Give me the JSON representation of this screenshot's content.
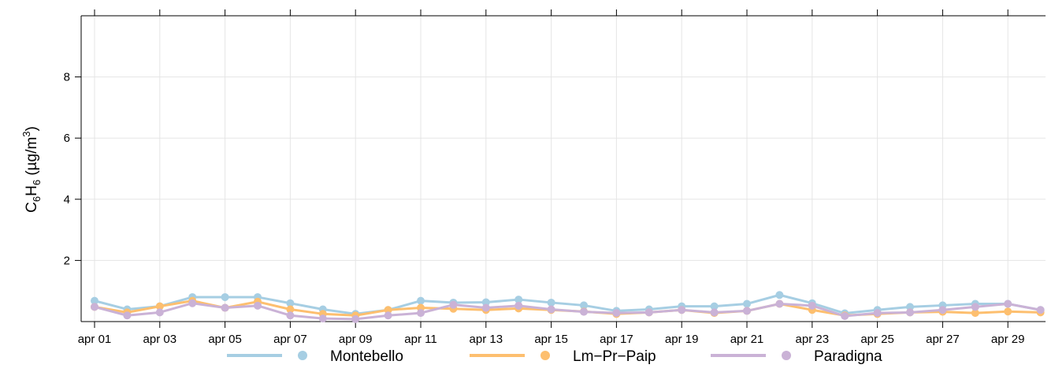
{
  "chart_data": {
    "type": "line",
    "ylabel": {
      "base": "C",
      "sub1": "6",
      "mid": "H",
      "sub2": "6",
      "unit": " (µg/m",
      "sup": "3",
      "close": ")"
    },
    "ylim": [
      0,
      10
    ],
    "yticks": [
      2,
      4,
      6,
      8
    ],
    "grid": true,
    "legend_position": "bottom",
    "x": [
      1,
      2,
      3,
      4,
      5,
      6,
      7,
      8,
      9,
      10,
      11,
      12,
      13,
      14,
      15,
      16,
      17,
      18,
      19,
      20,
      21,
      22,
      23,
      24,
      25,
      26,
      27,
      28,
      29,
      30
    ],
    "xtick_labels": [
      {
        "day": 1,
        "label": "apr 01"
      },
      {
        "day": 3,
        "label": "apr 03"
      },
      {
        "day": 5,
        "label": "apr 05"
      },
      {
        "day": 7,
        "label": "apr 07"
      },
      {
        "day": 9,
        "label": "apr 09"
      },
      {
        "day": 11,
        "label": "apr 11"
      },
      {
        "day": 13,
        "label": "apr 13"
      },
      {
        "day": 15,
        "label": "apr 15"
      },
      {
        "day": 17,
        "label": "apr 17"
      },
      {
        "day": 19,
        "label": "apr 19"
      },
      {
        "day": 21,
        "label": "apr 21"
      },
      {
        "day": 23,
        "label": "apr 23"
      },
      {
        "day": 25,
        "label": "apr 25"
      },
      {
        "day": 27,
        "label": "apr 27"
      },
      {
        "day": 29,
        "label": "apr 29"
      }
    ],
    "series": [
      {
        "name": "Montebello",
        "color": "#a6cee3",
        "values": [
          0.68,
          0.4,
          0.5,
          0.8,
          0.8,
          0.8,
          0.6,
          0.4,
          0.25,
          0.38,
          0.68,
          0.62,
          0.63,
          0.72,
          0.62,
          0.53,
          0.35,
          0.4,
          0.5,
          0.5,
          0.58,
          0.87,
          0.6,
          0.27,
          0.38,
          0.48,
          0.53,
          0.58,
          0.58,
          0.38
        ]
      },
      {
        "name": "Lm−Pr−Paip",
        "color": "#fdbf6f",
        "values": [
          0.48,
          0.3,
          0.5,
          0.68,
          0.45,
          0.65,
          0.4,
          0.25,
          0.2,
          0.38,
          0.45,
          0.42,
          0.38,
          0.43,
          0.38,
          0.33,
          0.25,
          0.3,
          0.38,
          0.28,
          0.35,
          0.58,
          0.38,
          0.2,
          0.25,
          0.3,
          0.32,
          0.28,
          0.33,
          0.3
        ]
      },
      {
        "name": "Paradigna",
        "color": "#cab2d6",
        "values": [
          0.48,
          0.2,
          0.3,
          0.6,
          0.45,
          0.52,
          0.2,
          0.1,
          0.08,
          0.2,
          0.28,
          0.55,
          0.45,
          0.52,
          0.4,
          0.32,
          0.28,
          0.3,
          0.38,
          0.3,
          0.35,
          0.58,
          0.52,
          0.18,
          0.28,
          0.3,
          0.38,
          0.48,
          0.58,
          0.38
        ]
      }
    ]
  }
}
